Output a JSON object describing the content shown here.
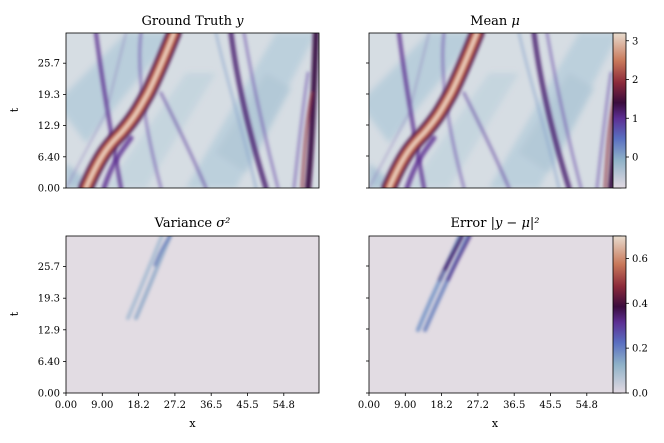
{
  "chart_data": [
    {
      "type": "heatmap",
      "title": "Ground Truth y",
      "title_main": "Ground Truth ",
      "title_var": "y",
      "xlabel": "",
      "ylabel": "t",
      "xlim": [
        0,
        63
      ],
      "ylim": [
        0,
        31
      ],
      "colormap": "twilight_shifted",
      "color_range": [
        -0.8,
        3.2
      ],
      "xticks": [],
      "yticks": [
        "0.00",
        "6.40",
        "12.9",
        "19.3",
        "25.7"
      ],
      "features": [
        {
          "kind": "high-value soliton",
          "path_x_at_t": [
            [
              5,
              0
            ],
            [
              12,
              10
            ],
            [
              18,
              14
            ],
            [
              22,
              22
            ],
            [
              27,
              31
            ]
          ]
        }
      ]
    },
    {
      "type": "heatmap",
      "title": "Mean μ",
      "title_main": "Mean ",
      "title_var": "μ",
      "xlabel": "",
      "ylabel": "",
      "xlim": [
        0,
        63
      ],
      "ylim": [
        0,
        31
      ],
      "colormap": "twilight_shifted",
      "color_range": [
        -0.8,
        3.2
      ],
      "xticks": [],
      "yticks": []
    },
    {
      "type": "heatmap",
      "title": "Variance σ²",
      "title_main": "Variance ",
      "title_var": "σ²",
      "xlabel": "x",
      "ylabel": "t",
      "xlim": [
        0,
        63
      ],
      "ylim": [
        0,
        31
      ],
      "colormap": "twilight_shifted",
      "color_range": [
        0,
        0.7
      ],
      "xticks": [
        "0.00",
        "9.00",
        "18.2",
        "27.2",
        "36.5",
        "45.5",
        "54.8"
      ],
      "yticks": [
        "0.00",
        "6.40",
        "12.9",
        "19.3",
        "25.7"
      ]
    },
    {
      "type": "heatmap",
      "title": "Error |y − μ|²",
      "title_main": "Error ",
      "title_var": "|y − μ|²",
      "xlabel": "x",
      "ylabel": "",
      "xlim": [
        0,
        63
      ],
      "ylim": [
        0,
        31
      ],
      "colormap": "twilight_shifted",
      "color_range": [
        0,
        0.7
      ],
      "xticks": [
        "0.00",
        "9.00",
        "18.2",
        "27.2",
        "36.5",
        "45.5",
        "54.8"
      ],
      "yticks": []
    }
  ],
  "colorbars": [
    {
      "ticks": [
        "3",
        "2",
        "1",
        "0"
      ],
      "tick_values": [
        3,
        2,
        1,
        0
      ],
      "range": [
        -0.8,
        3.2
      ]
    },
    {
      "ticks": [
        "0.6",
        "0.4",
        "0.2",
        "0.0"
      ],
      "tick_values": [
        0.6,
        0.4,
        0.2,
        0.0
      ],
      "range": [
        0,
        0.7
      ]
    }
  ]
}
